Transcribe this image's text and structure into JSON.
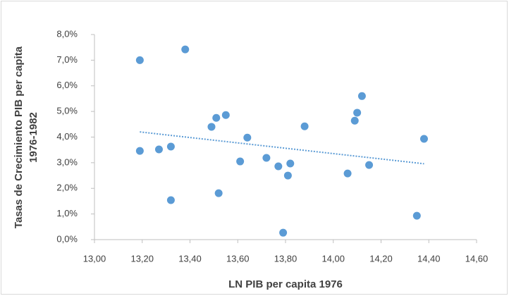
{
  "chart_data": {
    "type": "scatter",
    "x_label": "LN PIB per capita 1976",
    "y_label": [
      "Tasas de Crecimiento PIB per capita",
      "1976-1982"
    ],
    "color": "#5b9bd5",
    "trendline": true,
    "series": [
      {
        "x": [
          13.19,
          13.38,
          13.19,
          13.27,
          13.32,
          13.32,
          13.49,
          13.51,
          13.55,
          13.52,
          13.64,
          13.61,
          13.72,
          13.77,
          13.82,
          13.81,
          13.79,
          13.88,
          14.06,
          14.09,
          14.1,
          14.12,
          14.15,
          14.35,
          14.38
        ],
        "values": [
          7.0,
          7.42,
          3.46,
          3.52,
          3.63,
          1.54,
          4.4,
          4.75,
          4.86,
          1.81,
          3.98,
          3.05,
          3.19,
          2.86,
          2.97,
          2.5,
          0.27,
          4.42,
          2.58,
          4.64,
          4.95,
          5.6,
          2.91,
          0.93,
          3.93
        ]
      }
    ],
    "xlim": [
      13.0,
      14.6
    ],
    "xticks": [
      {
        "value": 13.0,
        "label": "13,00"
      },
      {
        "value": 13.2,
        "label": "13,20"
      },
      {
        "value": 13.4,
        "label": "13,40"
      },
      {
        "value": 13.6,
        "label": "13,60"
      },
      {
        "value": 13.8,
        "label": "13,80"
      },
      {
        "value": 14.0,
        "label": "14,00"
      },
      {
        "value": 14.2,
        "label": "14,20"
      },
      {
        "value": 14.4,
        "label": "14,40"
      },
      {
        "value": 14.6,
        "label": "14,60"
      }
    ],
    "ylim": [
      0,
      8
    ],
    "yticks": [
      {
        "value": 0,
        "label": "0,0%"
      },
      {
        "value": 1,
        "label": "1,0%"
      },
      {
        "value": 2,
        "label": "2,0%"
      },
      {
        "value": 3,
        "label": "3,0%"
      },
      {
        "value": 4,
        "label": "4,0%"
      },
      {
        "value": 5,
        "label": "5,0%"
      },
      {
        "value": 6,
        "label": "6,0%"
      },
      {
        "value": 7,
        "label": "7,0%"
      },
      {
        "value": 8,
        "label": "8,0%"
      }
    ]
  }
}
